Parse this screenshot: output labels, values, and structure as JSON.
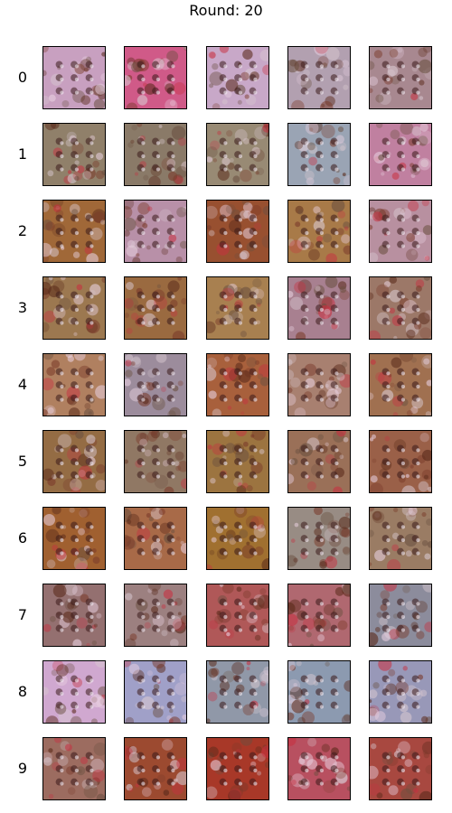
{
  "title": "Round: 20",
  "row_labels": [
    "0",
    "1",
    "2",
    "3",
    "4",
    "5",
    "6",
    "7",
    "8",
    "9"
  ],
  "columns": 5,
  "tiles": [
    [
      "#c8a0c0",
      "#d05a88",
      "#c8a8c8",
      "#b2a0b0",
      "#a88890"
    ],
    [
      "#90806a",
      "#8a7a68",
      "#988a74",
      "#9aa4b4",
      "#c080a0"
    ],
    [
      "#a06838",
      "#b890a8",
      "#985030",
      "#a87a48",
      "#b890a0"
    ],
    [
      "#9c7850",
      "#9a6a40",
      "#a88050",
      "#a88090",
      "#9c7868"
    ],
    [
      "#b08060",
      "#9c8c9c",
      "#a8603c",
      "#a88070",
      "#a07050"
    ],
    [
      "#946c44",
      "#907864",
      "#9c7440",
      "#9a7058",
      "#9a6048"
    ],
    [
      "#a06030",
      "#a86a48",
      "#a07030",
      "#988c84",
      "#9a7c64"
    ],
    [
      "#947070",
      "#9c8080",
      "#b05858",
      "#b06870",
      "#8c8c9c"
    ],
    [
      "#d0a8d0",
      "#a0a0c8",
      "#9098a8",
      "#8c9ab0",
      "#9898b8"
    ],
    [
      "#9c6c60",
      "#9c4a30",
      "#a83828",
      "#b85060",
      "#a84840"
    ]
  ]
}
